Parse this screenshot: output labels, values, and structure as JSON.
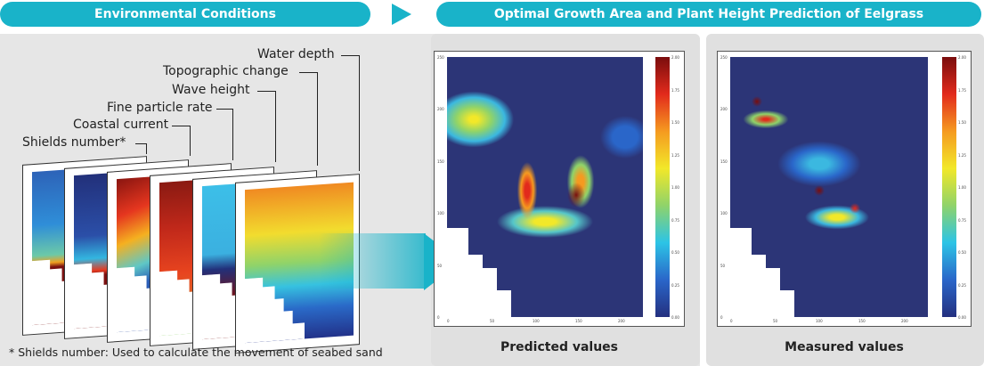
{
  "header": {
    "left_title": "Environmental Conditions",
    "right_title": "Optimal Growth Area and Plant Height Prediction of Eelgrass",
    "accent_color": "#19b3c9"
  },
  "layers": [
    {
      "label": "Shields number*"
    },
    {
      "label": "Coastal current"
    },
    {
      "label": "Fine particle rate"
    },
    {
      "label": "Wave height"
    },
    {
      "label": "Topographic change"
    },
    {
      "label": "Water depth"
    }
  ],
  "footnote": "* Shields number: Used to calculate the movement of seabed sand",
  "plots": [
    {
      "caption": "Predicted values"
    },
    {
      "caption": "Measured values"
    }
  ],
  "axes": {
    "y_ticks": [
      "250",
      "200",
      "150",
      "100",
      "50",
      "0"
    ],
    "x_ticks": [
      "0",
      "50",
      "100",
      "150",
      "200"
    ],
    "colorbar_ticks": [
      "2.00",
      "1.75",
      "1.50",
      "1.25",
      "1.00",
      "0.75",
      "0.50",
      "0.25",
      "0.00"
    ]
  }
}
